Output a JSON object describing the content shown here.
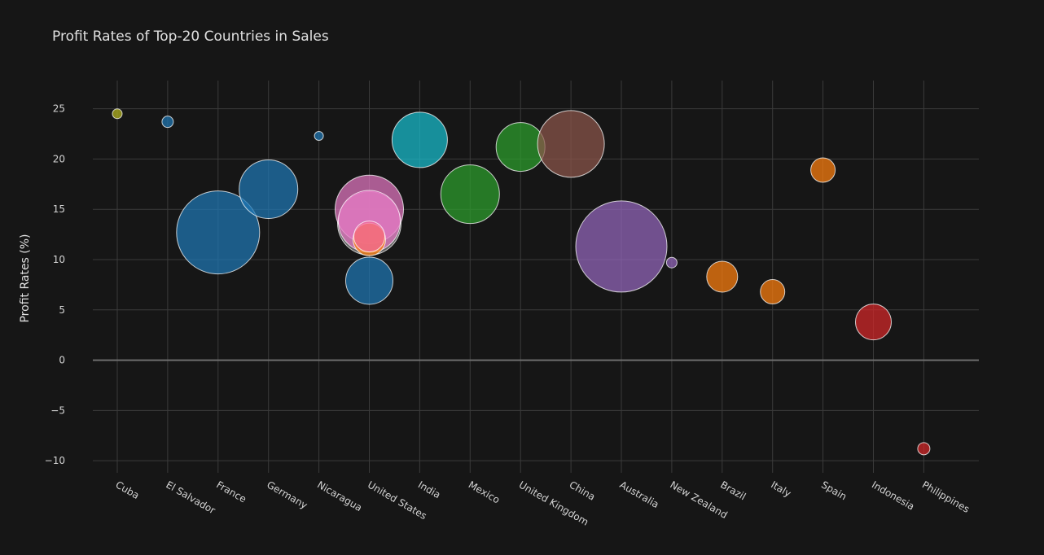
{
  "chart_data": {
    "type": "scatter",
    "title": "Profit Rates of Top-20 Countries in Sales",
    "xlabel": "",
    "ylabel": "Profit Rates (%)",
    "categories": [
      "Cuba",
      "El Salvador",
      "France",
      "Germany",
      "Nicaragua",
      "United States",
      "India",
      "Mexico",
      "United Kingdom",
      "China",
      "Australia",
      "New Zealand",
      "Brazil",
      "Italy",
      "Spain",
      "Indonesia",
      "Philippines"
    ],
    "ylim": [
      -11.2,
      27.8
    ],
    "yticks": [
      -10,
      -5,
      0,
      5,
      10,
      15,
      20,
      25
    ],
    "ytick_labels": [
      "−10",
      "−5",
      "0",
      "5",
      "10",
      "15",
      "20",
      "25"
    ],
    "grid": true,
    "marker": "bubble (size encodes sales)",
    "points": [
      {
        "x": "Cuba",
        "y": 24.5,
        "size": 6,
        "color": "#b5b51e"
      },
      {
        "x": "El Salvador",
        "y": 23.7,
        "size": 7,
        "color": "#1f77b4"
      },
      {
        "x": "France",
        "y": 12.7,
        "size": 51,
        "color": "#1f77b4"
      },
      {
        "x": "Germany",
        "y": 17.0,
        "size": 36,
        "color": "#1f77b4"
      },
      {
        "x": "Nicaragua",
        "y": 22.3,
        "size": 5.5,
        "color": "#1f77b4"
      },
      {
        "x": "United States",
        "y": 13.6,
        "size": 39,
        "color": "#7f7f7f"
      },
      {
        "x": "United States",
        "y": 15.0,
        "size": 42,
        "color": "#e377c2"
      },
      {
        "x": "United States",
        "y": 13.8,
        "size": 38,
        "color": "#e377c2"
      },
      {
        "x": "United States",
        "y": 12.0,
        "size": 20,
        "color": "#ff7f0e"
      },
      {
        "x": "United States",
        "y": 12.3,
        "size": 19,
        "color": "#f06a9a"
      },
      {
        "x": "United States",
        "y": 7.9,
        "size": 29,
        "color": "#1f77b4"
      },
      {
        "x": "India",
        "y": 21.9,
        "size": 34,
        "color": "#17becf"
      },
      {
        "x": "Mexico",
        "y": 16.5,
        "size": 36,
        "color": "#2ca02c"
      },
      {
        "x": "United Kingdom",
        "y": 21.2,
        "size": 30,
        "color": "#2ca02c"
      },
      {
        "x": "China",
        "y": 21.5,
        "size": 41,
        "color": "#8c564b"
      },
      {
        "x": "Australia",
        "y": 11.3,
        "size": 56,
        "color": "#9467bd"
      },
      {
        "x": "New Zealand",
        "y": 9.7,
        "size": 6.5,
        "color": "#9467bd"
      },
      {
        "x": "Brazil",
        "y": 8.3,
        "size": 19,
        "color": "#ff7f0e"
      },
      {
        "x": "Italy",
        "y": 6.8,
        "size": 15,
        "color": "#ff7f0e"
      },
      {
        "x": "Spain",
        "y": 18.9,
        "size": 15,
        "color": "#ff7f0e"
      },
      {
        "x": "Indonesia",
        "y": 3.8,
        "size": 22,
        "color": "#d62728"
      },
      {
        "x": "Philippines",
        "y": -8.8,
        "size": 7.5,
        "color": "#d62728"
      }
    ]
  }
}
